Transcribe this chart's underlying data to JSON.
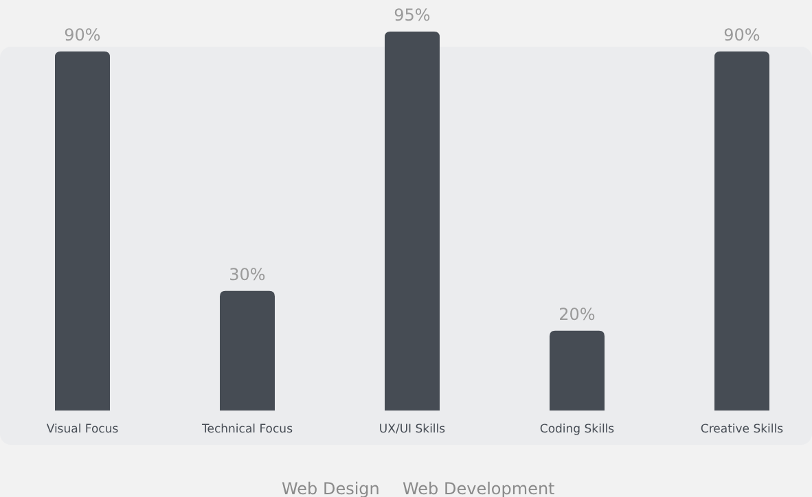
{
  "chart_data": {
    "type": "bar",
    "categories": [
      "Visual Focus",
      "Technical Focus",
      "UX/UI Skills",
      "Coding Skills",
      "Creative Skills"
    ],
    "values": [
      90,
      30,
      95,
      20,
      90
    ],
    "value_labels": [
      "90%",
      "30%",
      "95%",
      "20%",
      "90%"
    ],
    "color": "#464c54",
    "annotations": [
      "Web Design",
      "Web Development"
    ]
  }
}
